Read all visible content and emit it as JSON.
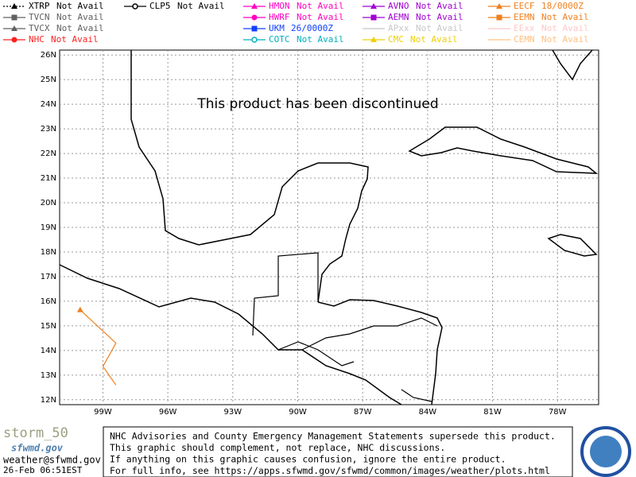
{
  "legend": [
    [
      {
        "name": "XTRP",
        "status": "Not Avail",
        "color": "#000000",
        "shape": "triangle",
        "dash": true
      },
      {
        "name": "TVCN",
        "status": "Not Avail",
        "color": "#606060",
        "shape": "square"
      },
      {
        "name": "TVCX",
        "status": "Not Avail",
        "color": "#606060",
        "shape": "triangle"
      },
      {
        "name": "NHC",
        "status": "Not Avail",
        "color": "#ff2020",
        "shape": "circle"
      }
    ],
    [
      {
        "name": "CLP5",
        "status": "Not Avail",
        "color": "#000000",
        "shape": "ring"
      }
    ],
    [
      {
        "name": "HMON",
        "status": "Not Avail",
        "color": "#ff00c0",
        "shape": "triangle"
      },
      {
        "name": "HWRF",
        "status": "Not Avail",
        "color": "#ff00c0",
        "shape": "circle"
      },
      {
        "name": "UKM",
        "status": "26/0000Z",
        "color": "#1040ff",
        "shape": "square"
      },
      {
        "name": "COTC",
        "status": "Not Avail",
        "color": "#00b0c0",
        "shape": "ring"
      }
    ],
    [
      {
        "name": "AVNO",
        "status": "Not Avail",
        "color": "#a000d0",
        "shape": "triangle"
      },
      {
        "name": "AEMN",
        "status": "Not Avail",
        "color": "#a000d0",
        "shape": "square"
      },
      {
        "name": "APxx",
        "status": "Not Avail",
        "color": "#c8c8c8",
        "shape": "none"
      },
      {
        "name": "CMC",
        "status": "Not Avail",
        "color": "#f0d000",
        "shape": "triangle"
      }
    ],
    [
      {
        "name": "EECF",
        "status": "18/0000Z",
        "color": "#f08020",
        "shape": "triangle",
        "track": {
          "lon": [
            -100.05,
            -98.4,
            -99.0,
            -98.4
          ],
          "lat": [
            15.65,
            14.3,
            13.35,
            12.6
          ]
        }
      },
      {
        "name": "EEMN",
        "status": "Not Avail",
        "color": "#f08020",
        "shape": "square"
      },
      {
        "name": "EExx",
        "status": "Not Avail",
        "color": "#ffc8c8",
        "shape": "none"
      },
      {
        "name": "CEMN",
        "status": "Not Avail",
        "color": "#ffc080",
        "shape": "none"
      }
    ]
  ],
  "map": {
    "lon_range": [
      -101,
      -76.1
    ],
    "lat_range": [
      11.8,
      26.2
    ],
    "lon_ticks": [
      {
        "value": -99,
        "label": "99W"
      },
      {
        "value": -96,
        "label": "96W"
      },
      {
        "value": -93,
        "label": "93W"
      },
      {
        "value": -90,
        "label": "90W"
      },
      {
        "value": -87,
        "label": "87W"
      },
      {
        "value": -84,
        "label": "84W"
      },
      {
        "value": -81,
        "label": "81W"
      },
      {
        "value": -78,
        "label": "78W"
      }
    ],
    "lat_ticks": [
      {
        "value": 26,
        "label": "26N"
      },
      {
        "value": 25,
        "label": "25N"
      },
      {
        "value": 24,
        "label": "24N"
      },
      {
        "value": 23,
        "label": "23N"
      },
      {
        "value": 22,
        "label": "22N"
      },
      {
        "value": 21,
        "label": "21N"
      },
      {
        "value": 20,
        "label": "20N"
      },
      {
        "value": 19,
        "label": "19N"
      },
      {
        "value": 18,
        "label": "18N"
      },
      {
        "value": 17,
        "label": "17N"
      },
      {
        "value": 16,
        "label": "16N"
      },
      {
        "value": 15,
        "label": "15N"
      },
      {
        "value": 14,
        "label": "14N"
      },
      {
        "value": 13,
        "label": "13N"
      },
      {
        "value": 12,
        "label": "12N"
      }
    ],
    "notice": "This product has been discontinued"
  },
  "disclaimer": [
    "NHC Advisories and County Emergency Management Statements supersede this product.",
    "This graphic should complement, not replace, NHC discussions.",
    "If anything on this graphic causes confusion, ignore the entire product.",
    "For full info, see  https://apps.sfwmd.gov/sfwmd/common/images/weather/plots.html"
  ],
  "footer": {
    "logo": "storm_50",
    "site": "sfwmd.gov",
    "email": "weather@sfwmd.gov",
    "timestamp": "26-Feb 06:51EST"
  }
}
